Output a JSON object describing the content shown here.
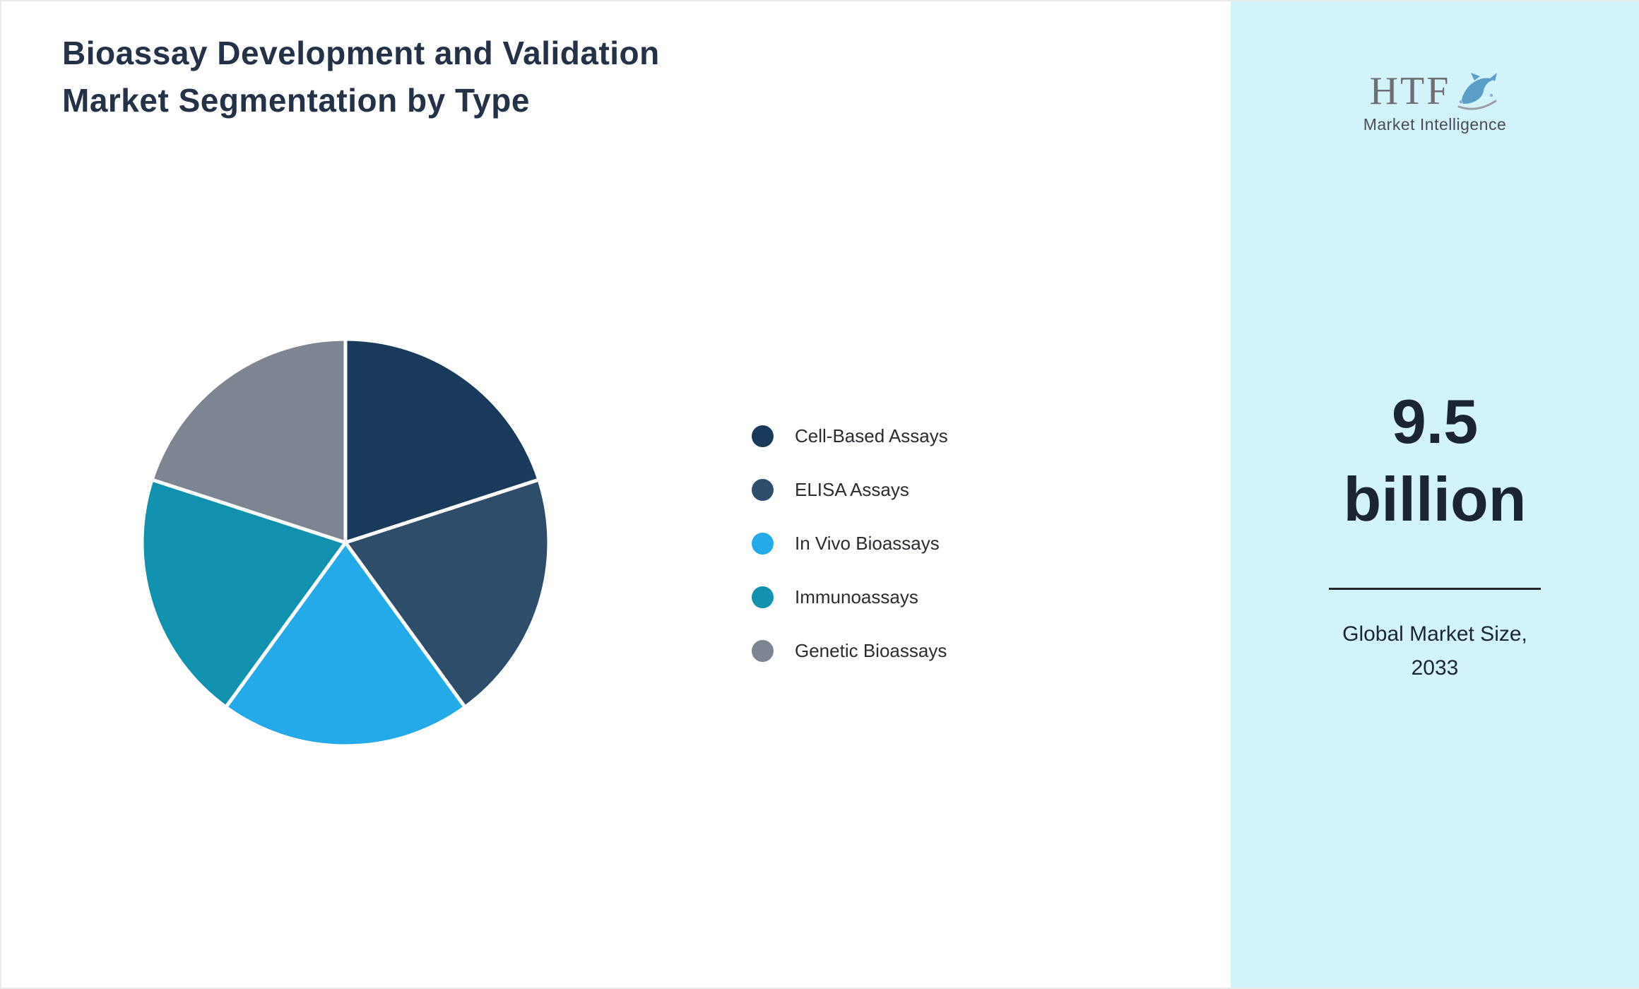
{
  "title": "Bioassay Development and Validation Market Segmentation by Type",
  "chart_data": {
    "type": "pie",
    "title": "Bioassay Development and Validation Market Segmentation by Type",
    "categories": [
      "Cell-Based Assays",
      "ELISA Assays",
      "In Vivo Bioassays",
      "Immunoassays",
      "Genetic Bioassays"
    ],
    "values": [
      20,
      20,
      20,
      20,
      20
    ],
    "colors": [
      "#1a3a5c",
      "#2e4d6b",
      "#24aae8",
      "#1191ad",
      "#7c8591"
    ],
    "legend_position": "right",
    "start_angle_deg": -90,
    "direction": "clockwise",
    "slice_border_color": "#ffffff"
  },
  "sidebar": {
    "background": "#d3f3fb",
    "logo": {
      "text": "HTF",
      "subtext": "Market Intelligence",
      "icon": "dolphin-icon"
    },
    "market_size": {
      "value": "9.5",
      "unit": "billion",
      "label_line1": "Global Market Size,",
      "label_line2": "2033"
    }
  }
}
